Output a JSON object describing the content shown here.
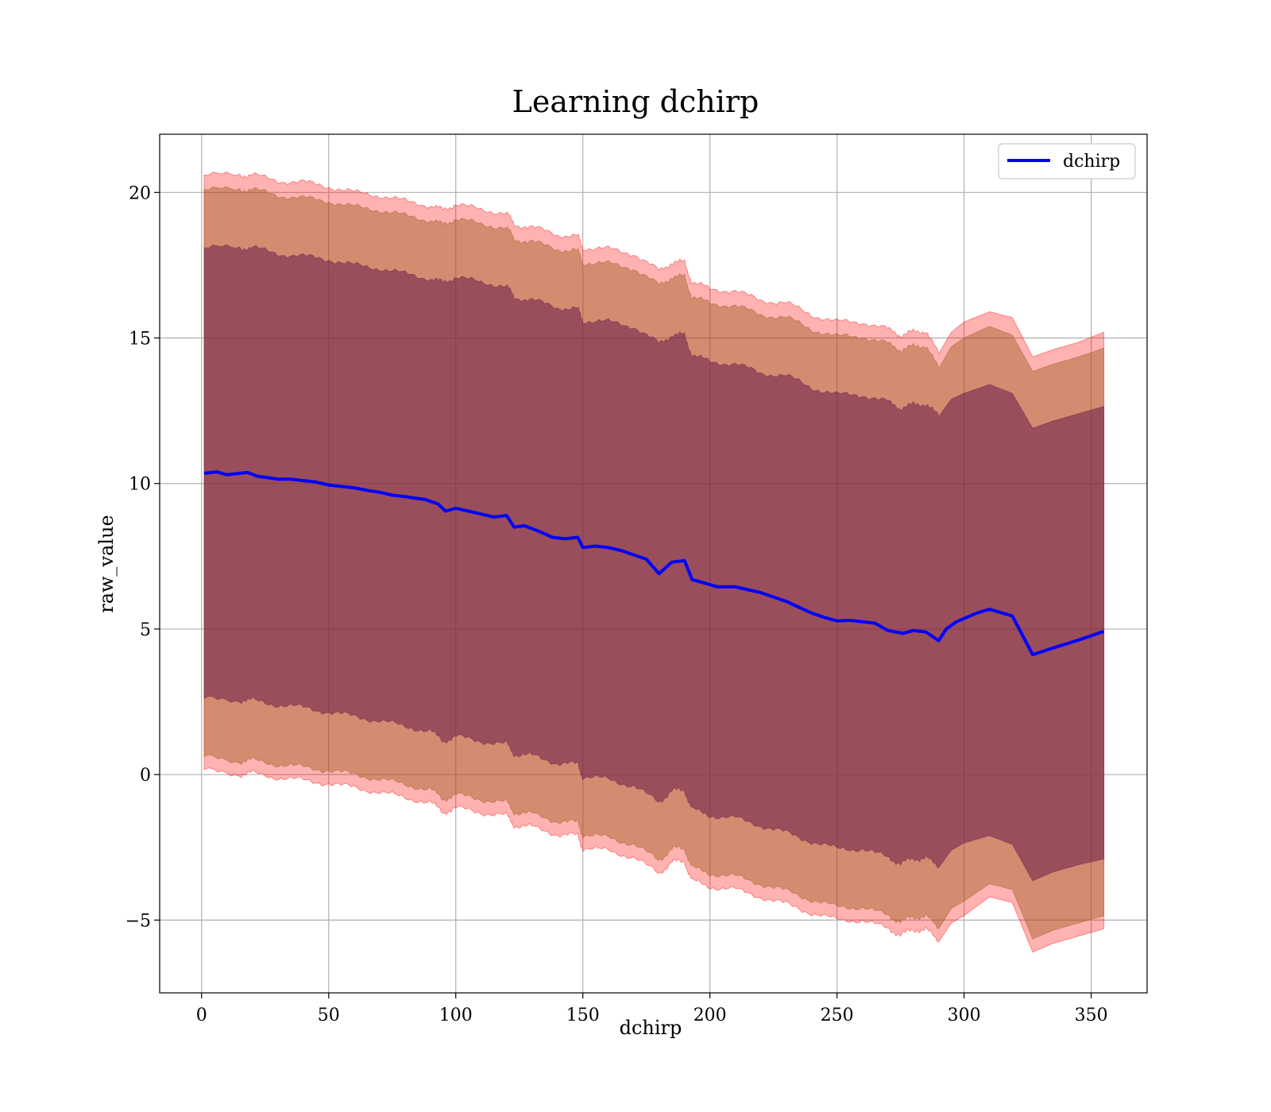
{
  "chart_data": {
    "type": "line",
    "title": "Learning dchirp",
    "xlabel": "dchirp",
    "ylabel": "raw_value",
    "xlim": [
      -16.5,
      372
    ],
    "ylim": [
      -7.5,
      22
    ],
    "xticks": [
      0,
      50,
      100,
      150,
      200,
      250,
      300,
      350
    ],
    "xtick_labels": [
      "0",
      "50",
      "100",
      "150",
      "200",
      "250",
      "300",
      "350"
    ],
    "yticks": [
      -5,
      0,
      5,
      10,
      15,
      20
    ],
    "ytick_labels": [
      "−5",
      "0",
      "5",
      "10",
      "15",
      "20"
    ],
    "grid": true,
    "legend": {
      "position": "top-right",
      "entries": [
        "dchirp"
      ]
    },
    "colors": {
      "line": "#0000ff",
      "outer_band": "#ff0000",
      "middle_band": "#a05a1e",
      "inner_band": "#6a1e4a"
    },
    "series": [
      {
        "name": "dchirp",
        "x": [
          1,
          6,
          10,
          15,
          18,
          22,
          26,
          30,
          35,
          40,
          45,
          50,
          55,
          60,
          66,
          70,
          75,
          80,
          84,
          88,
          93,
          96,
          100,
          105,
          110,
          115,
          120,
          123,
          127,
          133,
          138,
          143,
          148,
          150,
          155,
          160,
          165,
          170,
          175,
          180,
          185,
          190,
          193,
          197,
          203,
          210,
          215,
          220,
          225,
          230,
          235,
          240,
          245,
          250,
          255,
          260,
          265,
          270,
          276,
          280,
          285,
          290,
          293,
          297,
          301,
          305,
          310,
          319,
          327,
          335,
          345,
          355
        ],
        "values": [
          10.35,
          10.4,
          10.3,
          10.35,
          10.38,
          10.25,
          10.2,
          10.15,
          10.15,
          10.1,
          10.05,
          9.95,
          9.9,
          9.85,
          9.75,
          9.7,
          9.6,
          9.55,
          9.5,
          9.45,
          9.3,
          9.05,
          9.15,
          9.05,
          8.95,
          8.85,
          8.9,
          8.5,
          8.55,
          8.35,
          8.15,
          8.1,
          8.15,
          7.8,
          7.85,
          7.8,
          7.7,
          7.55,
          7.4,
          6.9,
          7.3,
          7.35,
          6.7,
          6.6,
          6.45,
          6.45,
          6.35,
          6.25,
          6.1,
          5.95,
          5.75,
          5.55,
          5.4,
          5.28,
          5.3,
          5.25,
          5.2,
          4.95,
          4.85,
          4.95,
          4.9,
          4.6,
          5.0,
          5.25,
          5.4,
          5.55,
          5.68,
          5.45,
          4.12,
          4.35,
          4.62,
          4.92
        ]
      }
    ],
    "bands": [
      {
        "name": "outer",
        "x": [
          1,
          15,
          20,
          30,
          40,
          50,
          60,
          70,
          80,
          90,
          95,
          100,
          110,
          120,
          123,
          130,
          140,
          148,
          150,
          160,
          170,
          180,
          185,
          190,
          193,
          200,
          210,
          220,
          230,
          240,
          250,
          260,
          270,
          275,
          280,
          285,
          290,
          295,
          300,
          310,
          319,
          327,
          335,
          345,
          355
        ],
        "upper": [
          20.6,
          20.6,
          20.6,
          20.4,
          20.35,
          20.2,
          20.0,
          19.9,
          19.7,
          19.55,
          19.4,
          19.6,
          19.4,
          19.3,
          18.9,
          18.8,
          18.55,
          18.5,
          18.1,
          18.05,
          17.9,
          17.3,
          17.6,
          17.6,
          16.9,
          16.7,
          16.6,
          16.3,
          16.2,
          15.8,
          15.55,
          15.55,
          15.3,
          15.1,
          15.2,
          15.25,
          14.45,
          15.2,
          15.55,
          15.9,
          15.7,
          14.35,
          14.6,
          14.85,
          15.2
        ],
        "lower": [
          0.15,
          0.0,
          0.05,
          -0.1,
          -0.2,
          -0.3,
          -0.45,
          -0.6,
          -0.8,
          -0.95,
          -1.3,
          -1.15,
          -1.3,
          -1.4,
          -1.75,
          -1.8,
          -2.05,
          -2.1,
          -2.55,
          -2.6,
          -2.85,
          -3.4,
          -3.0,
          -3.0,
          -3.65,
          -3.85,
          -3.95,
          -4.2,
          -4.45,
          -4.75,
          -5.0,
          -5.0,
          -5.3,
          -5.5,
          -5.35,
          -5.3,
          -5.75,
          -5.1,
          -4.85,
          -4.2,
          -4.4,
          -6.1,
          -5.8,
          -5.55,
          -5.3
        ]
      },
      {
        "name": "middle",
        "x": [
          1,
          15,
          20,
          30,
          40,
          50,
          60,
          70,
          80,
          90,
          95,
          100,
          110,
          120,
          123,
          130,
          140,
          148,
          150,
          160,
          170,
          180,
          185,
          190,
          193,
          200,
          210,
          220,
          230,
          240,
          250,
          260,
          270,
          275,
          280,
          285,
          290,
          295,
          300,
          310,
          319,
          327,
          335,
          345,
          355
        ],
        "upper": [
          20.1,
          20.1,
          20.1,
          19.9,
          19.8,
          19.7,
          19.5,
          19.4,
          19.2,
          19.05,
          18.9,
          19.1,
          18.9,
          18.8,
          18.4,
          18.3,
          18.05,
          18.0,
          17.6,
          17.55,
          17.4,
          16.8,
          17.1,
          17.1,
          16.4,
          16.2,
          16.1,
          15.8,
          15.7,
          15.3,
          15.05,
          15.05,
          14.8,
          14.6,
          14.7,
          14.75,
          13.95,
          14.7,
          15.0,
          15.4,
          15.1,
          13.85,
          14.1,
          14.35,
          14.65
        ],
        "lower": [
          0.6,
          0.45,
          0.5,
          0.35,
          0.25,
          0.15,
          0.0,
          -0.15,
          -0.35,
          -0.5,
          -0.85,
          -0.7,
          -0.85,
          -0.95,
          -1.3,
          -1.35,
          -1.6,
          -1.65,
          -2.1,
          -2.15,
          -2.4,
          -2.95,
          -2.55,
          -2.55,
          -3.2,
          -3.4,
          -3.5,
          -3.75,
          -4.0,
          -4.3,
          -4.55,
          -4.55,
          -4.85,
          -5.05,
          -4.9,
          -4.85,
          -5.3,
          -4.6,
          -4.35,
          -3.75,
          -3.95,
          -5.65,
          -5.35,
          -5.1,
          -4.85
        ]
      },
      {
        "name": "inner",
        "x": [
          1,
          15,
          20,
          30,
          40,
          50,
          60,
          70,
          80,
          90,
          95,
          100,
          110,
          120,
          123,
          130,
          140,
          148,
          150,
          160,
          170,
          180,
          185,
          190,
          193,
          200,
          210,
          220,
          230,
          240,
          250,
          260,
          270,
          275,
          280,
          285,
          290,
          295,
          300,
          310,
          319,
          327,
          335,
          345,
          355
        ],
        "upper": [
          18.1,
          18.1,
          18.1,
          17.9,
          17.8,
          17.7,
          17.5,
          17.4,
          17.2,
          17.05,
          16.9,
          17.1,
          16.9,
          16.8,
          16.4,
          16.3,
          16.05,
          16.0,
          15.6,
          15.55,
          15.4,
          14.8,
          15.1,
          15.1,
          14.4,
          14.2,
          14.1,
          13.8,
          13.7,
          13.3,
          13.05,
          13.05,
          12.8,
          12.6,
          12.7,
          12.75,
          12.3,
          12.9,
          13.1,
          13.4,
          13.1,
          11.9,
          12.15,
          12.4,
          12.65
        ],
        "lower": [
          2.6,
          2.55,
          2.55,
          2.4,
          2.3,
          2.15,
          2.0,
          1.85,
          1.65,
          1.5,
          1.15,
          1.3,
          1.15,
          1.05,
          0.7,
          0.65,
          0.4,
          0.35,
          -0.1,
          -0.15,
          -0.4,
          -0.95,
          -0.55,
          -0.55,
          -1.2,
          -1.4,
          -1.5,
          -1.75,
          -2.0,
          -2.3,
          -2.55,
          -2.55,
          -2.85,
          -3.05,
          -2.9,
          -2.85,
          -3.2,
          -2.6,
          -2.35,
          -2.1,
          -2.4,
          -3.65,
          -3.35,
          -3.1,
          -2.9
        ]
      }
    ]
  }
}
